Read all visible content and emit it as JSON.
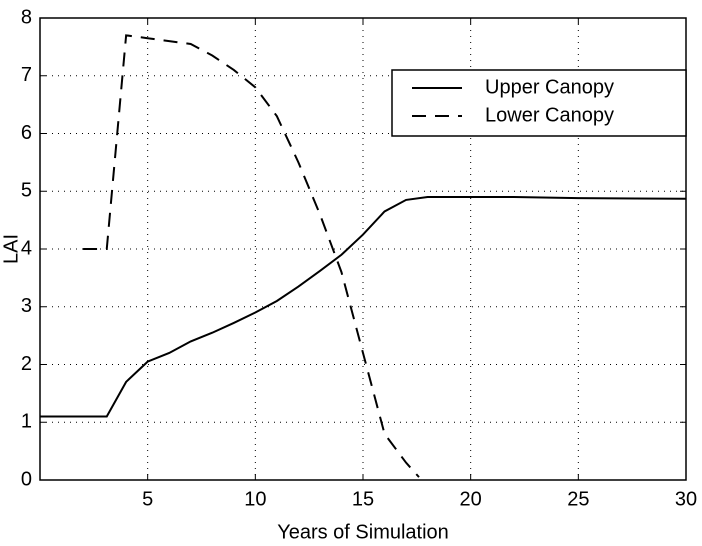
{
  "chart_data": {
    "type": "line",
    "xlabel": "Years of Simulation",
    "ylabel": "LAI",
    "xlim": [
      0,
      30
    ],
    "xticks": [
      5,
      10,
      15,
      20,
      25,
      30
    ],
    "ylim": [
      0,
      8
    ],
    "yticks": [
      0,
      1,
      2,
      3,
      4,
      5,
      6,
      7,
      8
    ],
    "grid": true,
    "legend": "upper right",
    "series": [
      {
        "name": "Upper Canopy",
        "color": "#000000",
        "dash": "solid",
        "x": [
          0,
          3.1,
          4,
          5,
          6,
          7,
          8,
          9,
          10,
          11,
          12,
          13,
          14,
          15,
          16,
          17,
          18,
          20,
          22,
          25,
          30
        ],
        "values": [
          1.1,
          1.1,
          1.7,
          2.05,
          2.2,
          2.4,
          2.55,
          2.72,
          2.9,
          3.1,
          3.35,
          3.62,
          3.9,
          4.25,
          4.65,
          4.85,
          4.9,
          4.9,
          4.9,
          4.88,
          4.87
        ]
      },
      {
        "name": "Lower Canopy",
        "color": "#000000",
        "dash": "dashed",
        "x": [
          2,
          3.1,
          4,
          5,
          6,
          7,
          8,
          9,
          10,
          11,
          12,
          13,
          14,
          15,
          16,
          17,
          17.6
        ],
        "values": [
          4,
          4,
          7.7,
          7.65,
          7.6,
          7.55,
          7.35,
          7.1,
          6.8,
          6.3,
          5.5,
          4.6,
          3.6,
          2.2,
          0.8,
          0.3,
          0.05
        ]
      }
    ]
  }
}
